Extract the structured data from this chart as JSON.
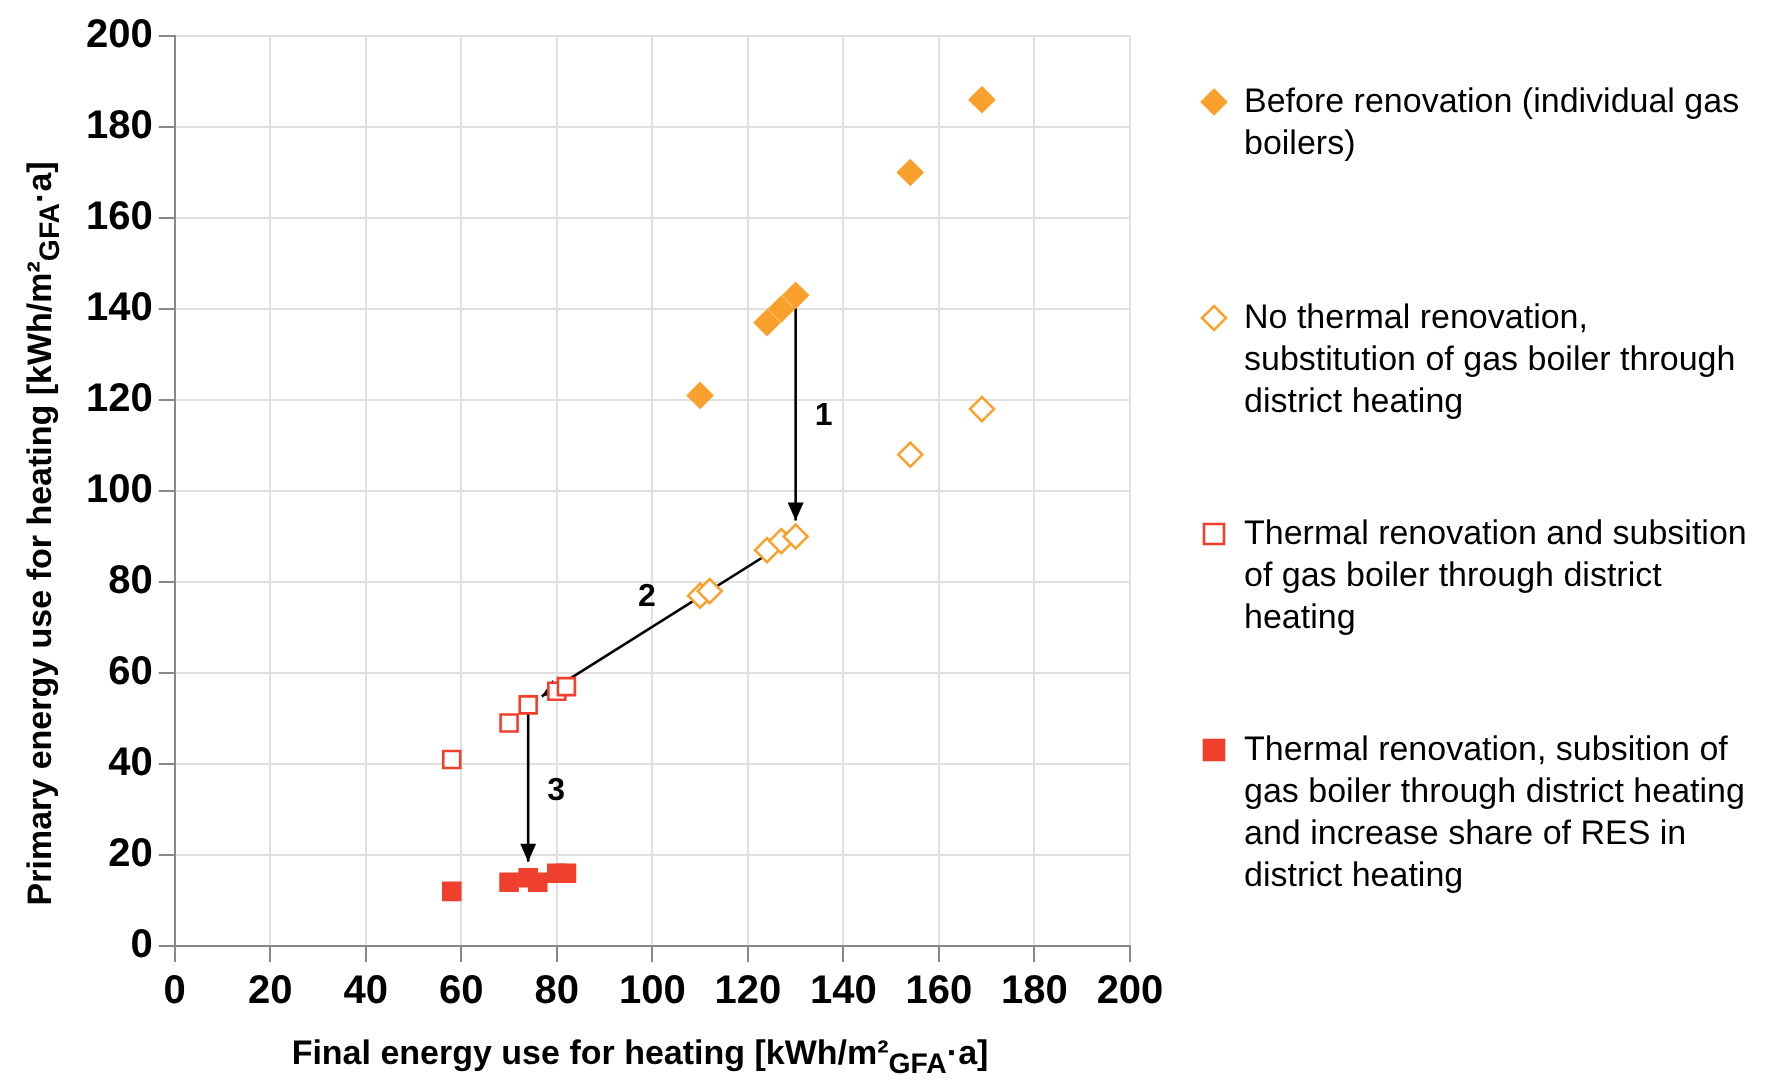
{
  "chart_data": {
    "type": "scatter",
    "xlabel": "Final energy use for heating [kWh/m²$_{GFA}$·a]",
    "ylabel": "Primary energy use for heating [kWh/m²$_{GFA}$·a]",
    "xlim": [
      0,
      200
    ],
    "xticks": [
      0,
      20,
      40,
      60,
      80,
      100,
      120,
      140,
      160,
      180,
      200
    ],
    "ylim": [
      0,
      200
    ],
    "yticks": [
      0,
      20,
      40,
      60,
      80,
      100,
      120,
      140,
      160,
      180,
      200
    ],
    "grid": true,
    "legend": "right",
    "series": [
      {
        "name": "Before renovation (individual gas boilers)",
        "color": "#f9a12c",
        "marker": "diamond",
        "x": [
          110,
          124,
          127,
          154,
          169,
          130
        ],
        "values": [
          121,
          137,
          140,
          170,
          186,
          143
        ]
      },
      {
        "name": "No thermal renovation, substitution of gas boiler through district heating",
        "color": "#f9a12c",
        "marker": "diamond",
        "x": [
          110,
          112,
          124,
          127,
          154,
          169,
          130
        ],
        "values": [
          77,
          78,
          87,
          89,
          108,
          118,
          90
        ]
      },
      {
        "name": "Thermal renovation and subsition of gas boiler through district heating",
        "color": "#ee402d",
        "marker": "square",
        "x": [
          58,
          70,
          80,
          82,
          74
        ],
        "values": [
          41,
          49,
          56,
          57,
          53
        ]
      },
      {
        "name": "Thermal renovation, subsition of gas boiler through district heating and increase share of RES in district heating",
        "color": "#ee402d",
        "marker": "square",
        "x": [
          58,
          70,
          76,
          80,
          82,
          74
        ],
        "values": [
          12,
          14,
          14,
          16,
          16,
          15
        ]
      }
    ],
    "annotations": [
      "1",
      "2",
      "3"
    ]
  }
}
